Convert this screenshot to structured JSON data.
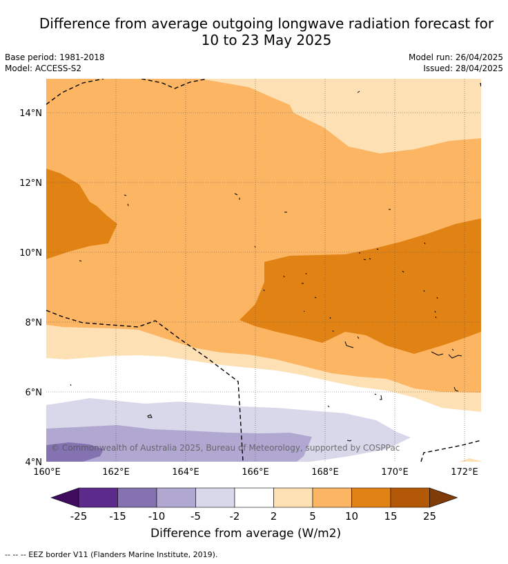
{
  "title_line1": "Difference from average outgoing longwave radiation forecast for",
  "title_line2": "10 to 23 May 2025",
  "meta": {
    "base_period": "Base period: 1981-2018",
    "model": "Model: ACCESS-S2",
    "model_run": "Model run: 26/04/2025",
    "issued": "Issued: 28/04/2025"
  },
  "copyright": "© Commonwealth of Australia 2025, Bureau of Meteorology, supported by COSPPac",
  "axes": {
    "lat_labels": [
      "14°N",
      "12°N",
      "10°N",
      "8°N",
      "6°N",
      "4°N"
    ],
    "lon_labels": [
      "160°E",
      "162°E",
      "164°E",
      "166°E",
      "168°E",
      "170°E",
      "172°E"
    ]
  },
  "colorbar": {
    "title": "Difference from average (W/m2)",
    "tick_labels": [
      "-25",
      "-15",
      "-10",
      "-5",
      "-2",
      "2",
      "5",
      "10",
      "15",
      "25"
    ],
    "colors": [
      "#3f0c5e",
      "#5b2a8a",
      "#8473b0",
      "#b0a8d1",
      "#d8d8ea",
      "#ffffff",
      "#fde0b4",
      "#fbb563",
      "#e08214",
      "#b35806",
      "#7f3b08"
    ]
  },
  "footer": "--  --  -- EEZ border V11 (Flanders Marine Institute, 2019)."
}
